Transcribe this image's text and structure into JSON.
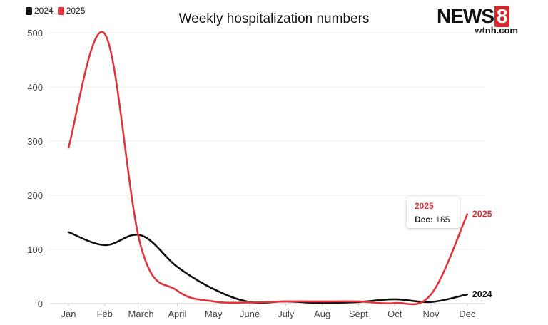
{
  "chart_data": {
    "type": "line",
    "title": "Weekly hospitalization numbers",
    "categories": [
      "Jan",
      "Feb",
      "March",
      "April",
      "May",
      "June",
      "July",
      "Aug",
      "Sept",
      "Oct",
      "Nov",
      "Dec"
    ],
    "ylim": [
      0,
      500
    ],
    "yticks": [
      0,
      100,
      200,
      300,
      400,
      500
    ],
    "grid": true,
    "legend_position": "top-left",
    "series": [
      {
        "name": "2024",
        "color": "#111111",
        "values": [
          132,
          108,
          126,
          68,
          27,
          3,
          4,
          1,
          3,
          8,
          3,
          17
        ]
      },
      {
        "name": "2025",
        "color": "#e0343d",
        "values": [
          288,
          498,
          105,
          24,
          4,
          2,
          4,
          4,
          4,
          1,
          17,
          165
        ]
      }
    ],
    "end_labels": [
      "2024",
      "2025"
    ],
    "tooltip": {
      "series": "2025",
      "label": "Dec:",
      "value": "165"
    }
  },
  "logo": {
    "main": "NEWS",
    "number": "8",
    "sub": "wtnh.com"
  }
}
